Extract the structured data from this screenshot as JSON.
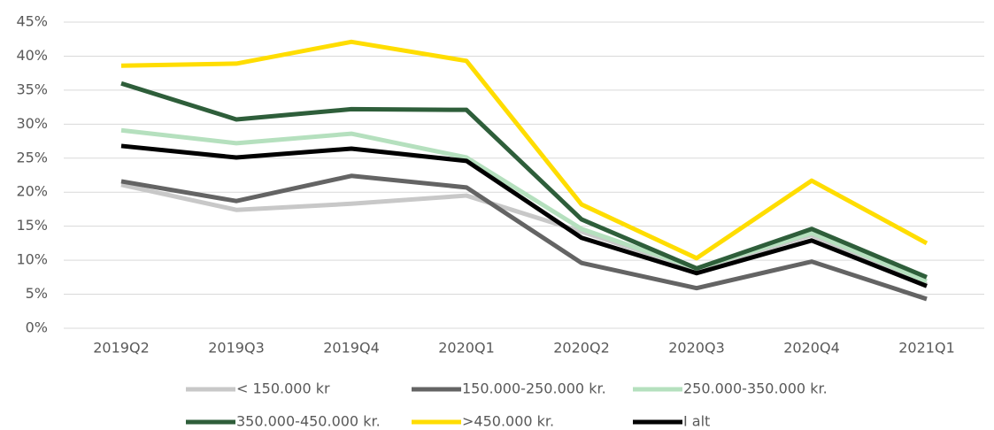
{
  "chart_data": {
    "type": "line",
    "categories": [
      "2019Q2",
      "2019Q3",
      "2019Q4",
      "2020Q1",
      "2020Q2",
      "2020Q3",
      "2020Q4",
      "2021Q1"
    ],
    "ylim": [
      0,
      45
    ],
    "yticks": [
      {
        "value": 0,
        "label": "0%"
      },
      {
        "value": 5,
        "label": "5%"
      },
      {
        "value": 10,
        "label": "10%"
      },
      {
        "value": 15,
        "label": "15%"
      },
      {
        "value": 20,
        "label": "20%"
      },
      {
        "value": 25,
        "label": "25%"
      },
      {
        "value": 30,
        "label": "30%"
      },
      {
        "value": 35,
        "label": "35%"
      },
      {
        "value": 40,
        "label": "40%"
      },
      {
        "value": 45,
        "label": "45%"
      }
    ],
    "grid": true,
    "legend": "bottom",
    "series": [
      {
        "name": "< 150.000 kr",
        "color": "#c8c8c8",
        "values": [
          21.1,
          17.4,
          18.3,
          19.5,
          14.2,
          8.6,
          13.7,
          6.4
        ]
      },
      {
        "name": "150.000-250.000 kr.",
        "color": "#646464",
        "values": [
          21.6,
          18.7,
          22.4,
          20.7,
          9.6,
          5.9,
          9.8,
          4.3
        ]
      },
      {
        "name": "250.000-350.000 kr.",
        "color": "#b5e0be",
        "values": [
          29.1,
          27.2,
          28.6,
          25.1,
          14.6,
          8.8,
          14.0,
          6.9
        ]
      },
      {
        "name": "350.000-450.000 kr.",
        "color": "#2e5e3a",
        "values": [
          36.0,
          30.7,
          32.2,
          32.1,
          16.0,
          8.8,
          14.6,
          7.5
        ]
      },
      {
        "name": ">450.000 kr.",
        "color": "#ffdd00",
        "values": [
          38.6,
          38.9,
          42.1,
          39.3,
          18.2,
          10.3,
          21.7,
          12.5
        ]
      },
      {
        "name": "I alt",
        "color": "#000000",
        "values": [
          26.8,
          25.1,
          26.4,
          24.6,
          13.3,
          8.1,
          12.9,
          6.2
        ]
      }
    ]
  }
}
